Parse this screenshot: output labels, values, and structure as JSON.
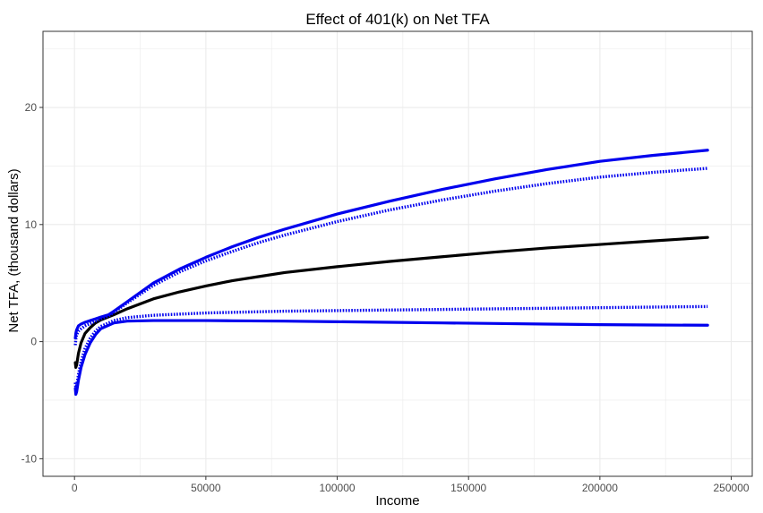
{
  "chart_data": {
    "type": "line",
    "title": "Effect of 401(k) on Net TFA",
    "xlabel": "Income",
    "ylabel": "Net TFA, (thousand dollars)",
    "xlim": [
      -12000,
      258000
    ],
    "ylim": [
      -11.5,
      26.5
    ],
    "x_ticks": [
      0,
      50000,
      100000,
      150000,
      200000,
      250000
    ],
    "x_tick_labels": [
      "0",
      "50000",
      "100000",
      "150000",
      "200000",
      "250000"
    ],
    "y_ticks": [
      -10,
      0,
      10,
      20
    ],
    "y_tick_labels": [
      "-10",
      "0",
      "10",
      "20"
    ],
    "grid": true,
    "colors": {
      "estimate": "#000000",
      "band": "#0000ee",
      "grid": "#ebebeb",
      "panel_border": "#333333"
    },
    "series": [
      {
        "style": "solid",
        "color": "#000000",
        "x": [
          300,
          500,
          800,
          1500,
          2500,
          4000,
          6000,
          8000,
          10000,
          15000,
          20000,
          30000,
          40000,
          50000,
          60000,
          70000,
          80000,
          100000,
          120000,
          140000,
          160000,
          180000,
          200000,
          220000,
          241000
        ],
        "y": [
          -1.8,
          -2.2,
          -2.0,
          -1.0,
          -0.1,
          0.7,
          1.2,
          1.6,
          1.85,
          2.3,
          2.8,
          3.65,
          4.25,
          4.75,
          5.2,
          5.55,
          5.9,
          6.4,
          6.85,
          7.25,
          7.65,
          8.0,
          8.3,
          8.6,
          8.9
        ]
      },
      {
        "style": "solid",
        "color": "#0000ee",
        "x": [
          300,
          500,
          800,
          1500,
          2500,
          4000,
          6000,
          8000,
          10000,
          13000,
          15000,
          20000,
          30000,
          40000,
          50000,
          60000,
          70000,
          80000,
          100000,
          120000,
          140000,
          160000,
          180000,
          200000,
          220000,
          241000
        ],
        "y": [
          0.3,
          0.7,
          1.0,
          1.35,
          1.5,
          1.65,
          1.8,
          1.95,
          2.1,
          2.3,
          2.6,
          3.4,
          5.0,
          6.2,
          7.2,
          8.1,
          8.9,
          9.6,
          10.9,
          12.0,
          13.0,
          13.9,
          14.7,
          15.4,
          15.9,
          16.35
        ]
      },
      {
        "style": "dotted",
        "color": "#0000ee",
        "x": [
          300,
          500,
          800,
          1500,
          2500,
          4000,
          6000,
          8000,
          10000,
          13000,
          15000,
          20000,
          30000,
          40000,
          50000,
          60000,
          70000,
          80000,
          100000,
          120000,
          140000,
          160000,
          180000,
          200000,
          220000,
          241000
        ],
        "y": [
          -0.3,
          0.2,
          0.6,
          0.9,
          1.1,
          1.35,
          1.55,
          1.75,
          1.95,
          2.2,
          2.5,
          3.3,
          4.8,
          5.95,
          6.9,
          7.7,
          8.45,
          9.1,
          10.25,
          11.25,
          12.1,
          12.85,
          13.5,
          14.05,
          14.45,
          14.8
        ]
      },
      {
        "style": "dotted",
        "color": "#0000ee",
        "x": [
          300,
          500,
          800,
          1500,
          2500,
          4000,
          6000,
          8000,
          10000,
          15000,
          20000,
          30000,
          40000,
          50000,
          60000,
          80000,
          100000,
          120000,
          140000,
          160000,
          180000,
          200000,
          220000,
          241000
        ],
        "y": [
          -3.5,
          -4.0,
          -3.8,
          -2.8,
          -1.7,
          -0.6,
          0.3,
          0.9,
          1.3,
          1.8,
          2.05,
          2.25,
          2.35,
          2.45,
          2.5,
          2.6,
          2.65,
          2.7,
          2.75,
          2.8,
          2.85,
          2.9,
          2.95,
          3.0
        ]
      },
      {
        "style": "solid",
        "color": "#0000ee",
        "x": [
          300,
          500,
          800,
          1500,
          2500,
          4000,
          6000,
          8000,
          10000,
          15000,
          20000,
          30000,
          40000,
          50000,
          60000,
          80000,
          100000,
          120000,
          140000,
          160000,
          180000,
          200000,
          220000,
          241000
        ],
        "y": [
          -4.0,
          -4.5,
          -4.3,
          -3.3,
          -2.2,
          -1.1,
          -0.1,
          0.6,
          1.1,
          1.6,
          1.75,
          1.8,
          1.8,
          1.8,
          1.78,
          1.75,
          1.7,
          1.65,
          1.6,
          1.55,
          1.5,
          1.45,
          1.42,
          1.4
        ]
      }
    ]
  }
}
